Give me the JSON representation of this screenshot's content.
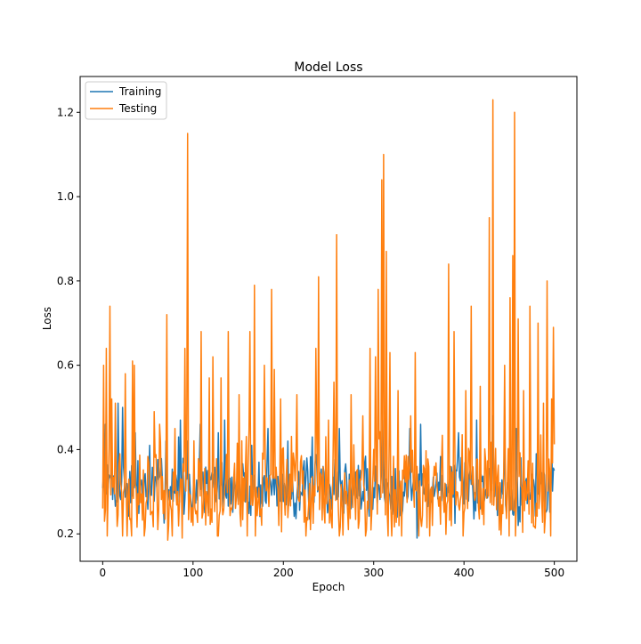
{
  "chart_data": {
    "type": "line",
    "title": "Model Loss",
    "xlabel": "Epoch",
    "ylabel": "Loss",
    "xlim": [
      -25,
      525
    ],
    "ylim": [
      0.135,
      1.285
    ],
    "xticks": [
      0,
      100,
      200,
      300,
      400,
      500
    ],
    "yticks": [
      0.2,
      0.4,
      0.6,
      0.8,
      1.0,
      1.2
    ],
    "xtick_labels": [
      "0",
      "100",
      "200",
      "300",
      "400",
      "500"
    ],
    "ytick_labels": [
      "0.2",
      "0.4",
      "0.6",
      "0.8",
      "1.0",
      "1.2"
    ],
    "grid": false,
    "legend_position": "top-left",
    "x_start": 0,
    "x_end": 500,
    "series": [
      {
        "name": "Training",
        "color": "#1f77b4",
        "baseline": 0.31,
        "spikes": [
          [
            3,
            0.46
          ],
          [
            10,
            0.42
          ],
          [
            17,
            0.51
          ],
          [
            22,
            0.5
          ],
          [
            36,
            0.44
          ],
          [
            52,
            0.41
          ],
          [
            70,
            0.42
          ],
          [
            84,
            0.43
          ],
          [
            86,
            0.47
          ],
          [
            94,
            0.42
          ],
          [
            108,
            0.46
          ],
          [
            128,
            0.44
          ],
          [
            135,
            0.47
          ],
          [
            165,
            0.41
          ],
          [
            183,
            0.45
          ],
          [
            205,
            0.42
          ],
          [
            232,
            0.43
          ],
          [
            262,
            0.45
          ],
          [
            296,
            0.44
          ],
          [
            310,
            0.47
          ],
          [
            340,
            0.45
          ],
          [
            352,
            0.46
          ],
          [
            394,
            0.44
          ],
          [
            414,
            0.47
          ],
          [
            432,
            0.48
          ],
          [
            445,
            0.44
          ],
          [
            458,
            0.45
          ],
          [
            480,
            0.39
          ],
          [
            497,
            0.43
          ],
          [
            500,
            0.35
          ]
        ],
        "dips": [
          [
            348,
            0.19
          ],
          [
            460,
            0.22
          ],
          [
            490,
            0.25
          ]
        ]
      },
      {
        "name": "Testing",
        "color": "#ff7f0e",
        "baseline": 0.3,
        "spikes": [
          [
            1,
            0.6
          ],
          [
            4,
            0.64
          ],
          [
            8,
            0.74
          ],
          [
            10,
            0.52
          ],
          [
            14,
            0.51
          ],
          [
            25,
            0.58
          ],
          [
            33,
            0.61
          ],
          [
            35,
            0.6
          ],
          [
            57,
            0.49
          ],
          [
            63,
            0.46
          ],
          [
            71,
            0.72
          ],
          [
            80,
            0.45
          ],
          [
            91,
            0.64
          ],
          [
            94,
            1.15
          ],
          [
            100,
            0.56
          ],
          [
            109,
            0.68
          ],
          [
            118,
            0.57
          ],
          [
            122,
            0.62
          ],
          [
            131,
            0.57
          ],
          [
            139,
            0.68
          ],
          [
            151,
            0.53
          ],
          [
            163,
            0.68
          ],
          [
            168,
            0.79
          ],
          [
            179,
            0.6
          ],
          [
            187,
            0.78
          ],
          [
            190,
            0.59
          ],
          [
            197,
            0.52
          ],
          [
            215,
            0.53
          ],
          [
            236,
            0.64
          ],
          [
            239,
            0.81
          ],
          [
            250,
            0.47
          ],
          [
            256,
            0.56
          ],
          [
            259,
            0.91
          ],
          [
            275,
            0.53
          ],
          [
            288,
            0.48
          ],
          [
            296,
            0.64
          ],
          [
            302,
            0.62
          ],
          [
            305,
            0.78
          ],
          [
            309,
            1.04
          ],
          [
            311,
            1.1
          ],
          [
            314,
            0.87
          ],
          [
            318,
            0.63
          ],
          [
            327,
            0.54
          ],
          [
            341,
            0.48
          ],
          [
            346,
            0.63
          ],
          [
            365,
            0.65
          ],
          [
            383,
            0.84
          ],
          [
            389,
            0.68
          ],
          [
            402,
            0.54
          ],
          [
            408,
            0.74
          ],
          [
            418,
            0.55
          ],
          [
            428,
            0.95
          ],
          [
            432,
            1.23
          ],
          [
            445,
            0.6
          ],
          [
            451,
            0.76
          ],
          [
            454,
            0.86
          ],
          [
            456,
            1.2
          ],
          [
            460,
            0.71
          ],
          [
            466,
            0.54
          ],
          [
            473,
            0.74
          ],
          [
            482,
            0.7
          ],
          [
            488,
            0.51
          ],
          [
            492,
            0.8
          ],
          [
            497,
            0.52
          ],
          [
            499,
            0.69
          ]
        ],
        "dips": [
          [
            72,
            0.185
          ],
          [
            88,
            0.19
          ],
          [
            61,
            0.21
          ],
          [
            100,
            0.22
          ],
          [
            195,
            0.22
          ],
          [
            230,
            0.21
          ],
          [
            272,
            0.21
          ],
          [
            365,
            0.22
          ]
        ]
      }
    ]
  }
}
